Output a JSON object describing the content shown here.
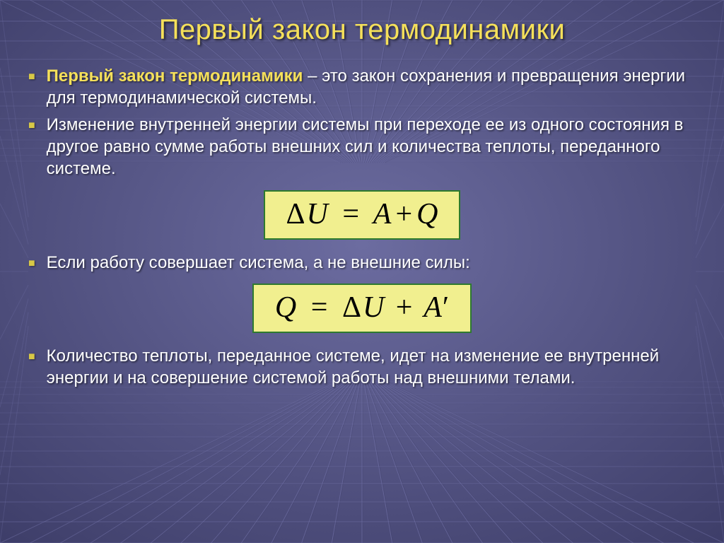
{
  "colors": {
    "bg_base": "#5a5a8e",
    "bg_grad_inner": "#6c6ca0",
    "bg_grad_outer": "#3d3d68",
    "grid_line": "#7878b0",
    "grid_line_dark": "#40406a",
    "title": "#f5e05a",
    "bullet_marker": "#d8c846",
    "body_text": "#ffffff",
    "bold_text": "#f5e05a",
    "formula_bg": "#f1ef8f",
    "formula_border": "#2e7a2e",
    "formula_text": "#000000"
  },
  "title": "Первый закон термодинамики",
  "bullets": [
    {
      "lead": "Первый закон термодинамики",
      "rest": " – это закон сохранения и превращения  энергии для термодинамической системы."
    },
    {
      "lead": "",
      "rest": "Изменение внутренней энергии системы при переходе ее из одного состояния в другое равно сумме работы внешних сил и количества теплоты, переданного системе."
    }
  ],
  "formula1": {
    "lhs_delta": "Δ",
    "lhs_var": "U",
    "eq": "=",
    "r1": "A",
    "plus": "+",
    "r2": "Q"
  },
  "bullets2": [
    {
      "lead": "",
      "rest": "Если работу совершает система, а не внешние силы:"
    }
  ],
  "formula2": {
    "l": "Q",
    "eq": "=",
    "r_delta": "Δ",
    "r_var": "U",
    "plus": "+",
    "r2": "A",
    "prime": "′"
  },
  "bullets3": [
    {
      "lead": "",
      "rest": "Количество теплоты, переданное системе, идет на изменение ее внутренней энергии и на совершение системой работы над внешними телами."
    }
  ]
}
